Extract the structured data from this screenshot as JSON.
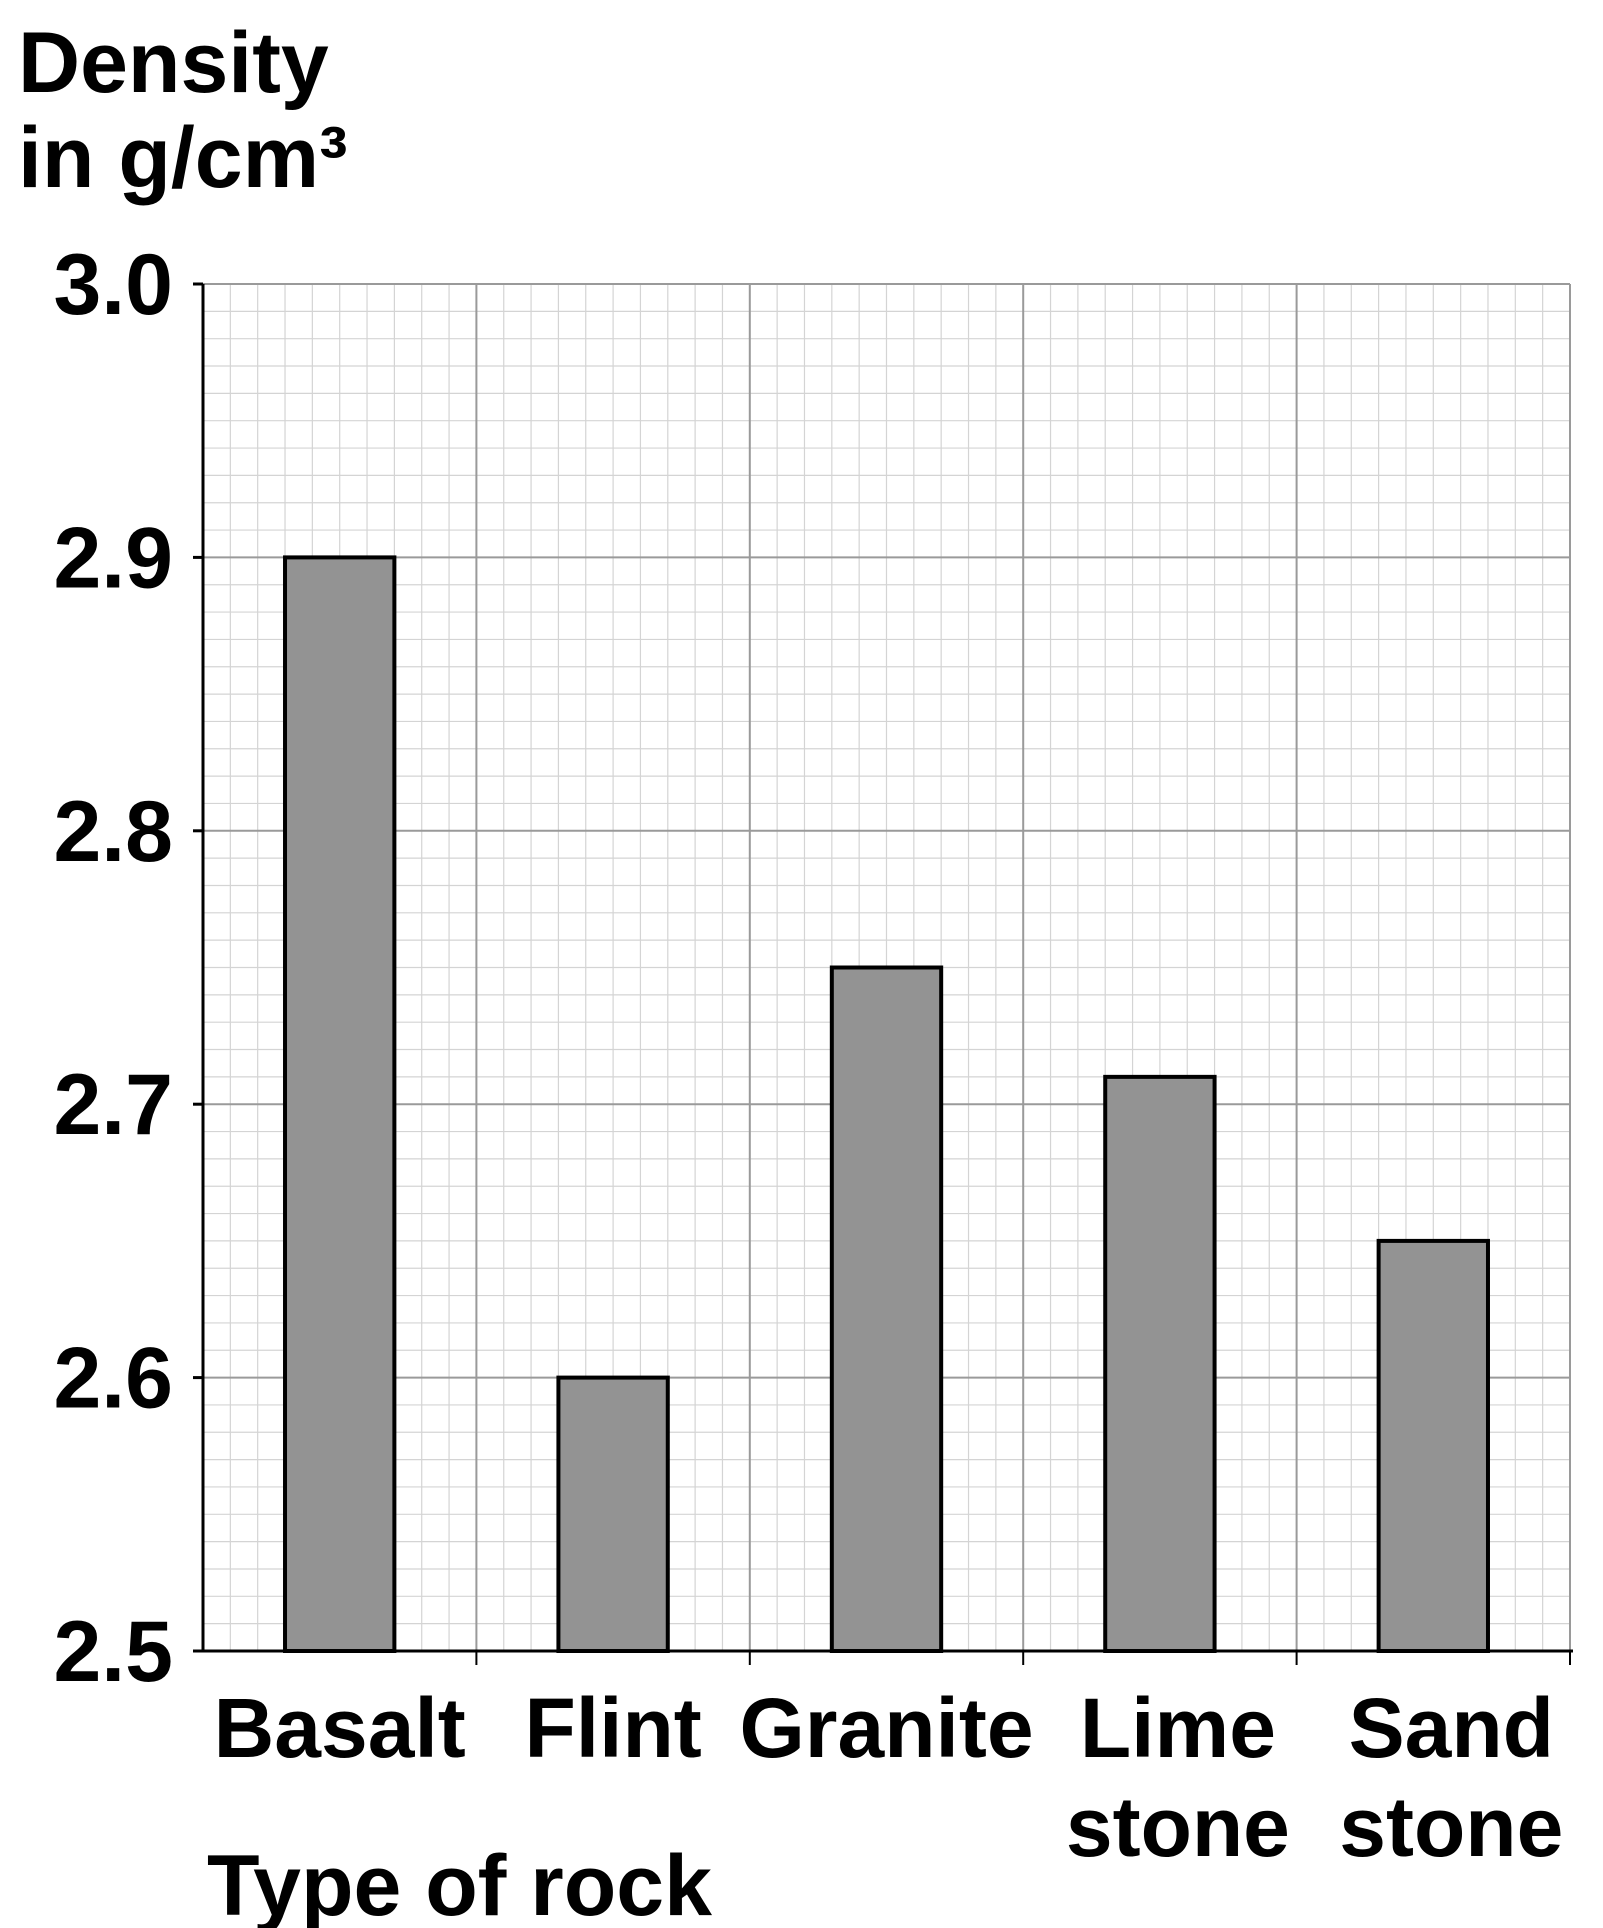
{
  "chart_data": {
    "type": "bar",
    "y_label": [
      "Density",
      "in g/cm³"
    ],
    "x_label": "Type of rock",
    "categories": [
      [
        "Basalt"
      ],
      [
        "Flint"
      ],
      [
        "Granite"
      ],
      [
        "Lime",
        "stone"
      ],
      [
        "Sand",
        "stone"
      ]
    ],
    "values": [
      2.9,
      2.6,
      2.75,
      2.71,
      2.65
    ],
    "color": "#939393",
    "ylim": [
      2.5,
      3.0
    ],
    "yticks": [
      2.5,
      2.6,
      2.7,
      2.8,
      2.9,
      {
        "value": 3.0,
        "label": "3.0"
      }
    ],
    "grid": true
  }
}
